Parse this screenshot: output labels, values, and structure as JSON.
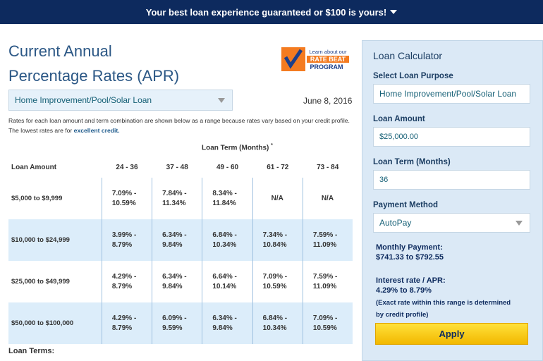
{
  "banner": {
    "text": "Your best loan experience guaranteed or $100 is yours!"
  },
  "main": {
    "title_line1": "Current Annual",
    "title_line2": "Percentage Rates (APR)",
    "badge": {
      "line1": "Learn about our",
      "line2": "RATE BEAT",
      "line3": "PROGRAM"
    },
    "purpose_select": "Home Improvement/Pool/Solar Loan",
    "date": "June 8, 2016",
    "note": "Rates for each loan amount and term combination are shown below as a range because rates vary based on your credit profile. The lowest rates are for",
    "note_link": "excellent credit.",
    "table": {
      "group_header": "Loan Term (Months)",
      "group_marker": "*",
      "columns": [
        "Loan Amount",
        "24 - 36",
        "37 - 48",
        "49 - 60",
        "61 - 72",
        "73 - 84"
      ],
      "rows": [
        {
          "amount": "$5,000 to $9,999",
          "rates": [
            [
              "7.09% -",
              "10.59%"
            ],
            [
              "7.84% -",
              "11.34%"
            ],
            [
              "8.34% -",
              "11.84%"
            ],
            [
              "N/A"
            ],
            [
              "N/A"
            ]
          ]
        },
        {
          "amount": "$10,000 to $24,999",
          "rates": [
            [
              "3.99% -",
              "8.79%"
            ],
            [
              "6.34% -",
              "9.84%"
            ],
            [
              "6.84% -",
              "10.34%"
            ],
            [
              "7.34% -",
              "10.84%"
            ],
            [
              "7.59% -",
              "11.09%"
            ]
          ]
        },
        {
          "amount": "$25,000 to $49,999",
          "rates": [
            [
              "4.29% -",
              "8.79%"
            ],
            [
              "6.34% -",
              "9.84%"
            ],
            [
              "6.64% -",
              "10.14%"
            ],
            [
              "7.09% -",
              "10.59%"
            ],
            [
              "7.59% -",
              "11.09%"
            ]
          ]
        },
        {
          "amount": "$50,000 to $100,000",
          "rates": [
            [
              "4.29% -",
              "8.79%"
            ],
            [
              "6.09% -",
              "9.59%"
            ],
            [
              "6.34% -",
              "9.84%"
            ],
            [
              "6.84% -",
              "10.34%"
            ],
            [
              "7.09% -",
              "10.59%"
            ]
          ]
        }
      ]
    },
    "footer_label": "Loan Terms:"
  },
  "calculator": {
    "title": "Loan Calculator",
    "purpose_label": "Select Loan Purpose",
    "purpose_value": "Home Improvement/Pool/Solar Loan",
    "amount_label": "Loan Amount",
    "amount_value": "$25,000.00",
    "term_label": "Loan Term (Months)",
    "term_value": "36",
    "method_label": "Payment Method",
    "method_value": "AutoPay",
    "payment_label": "Monthly Payment:",
    "payment_value": "$741.33 to $792.55",
    "rate_label": "Interest rate / APR:",
    "rate_value": "4.29% to 8.79%",
    "rate_note_line1": "(Exact rate within this range is determined",
    "rate_note_line2": "by credit profile)",
    "apply": "Apply"
  }
}
